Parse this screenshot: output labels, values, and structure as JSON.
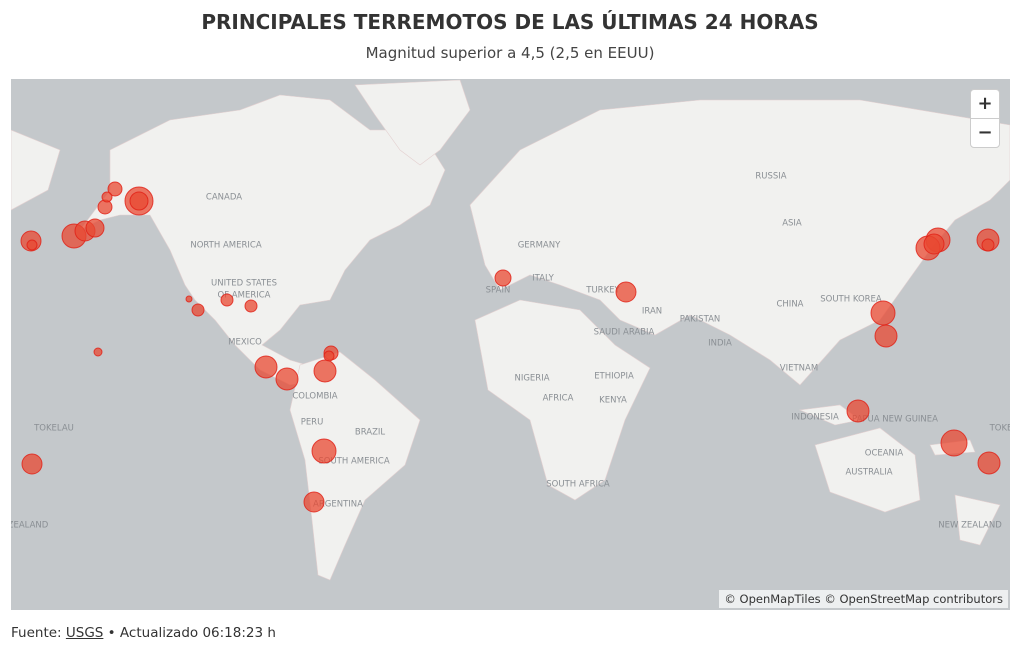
{
  "header": {
    "title": "PRINCIPALES TERREMOTOS DE LAS ÚLTIMAS 24 HORAS",
    "subtitle": "Magnitud superior a 4,5 (2,5 en EEUU)"
  },
  "map": {
    "labels": [
      "CANADA",
      "NORTH AMERICA",
      "UNITED STATES",
      "OF AMERICA",
      "MEXICO",
      "COLOMBIA",
      "PERU",
      "BRAZIL",
      "SOUTH AMERICA",
      "ARGENTINA",
      "TOKELAU",
      "ZEALAND",
      "RUSSIA",
      "ASIA",
      "GERMANY",
      "ITALY",
      "SPAIN",
      "TURKEY",
      "IRAN",
      "SAUDI ARABIA",
      "PAKISTAN",
      "INDIA",
      "CHINA",
      "SOUTH KOREA",
      "VIETNAM",
      "NIGERIA",
      "ETHIOPIA",
      "AFRICA",
      "KENYA",
      "SOUTH AFRICA",
      "INDONESIA",
      "PAPUA NEW GUINEA",
      "OCEANIA",
      "AUSTRALIA",
      "NEW ZEALAND",
      "TOKE"
    ],
    "zoom_in": "+",
    "zoom_out": "−",
    "attribution": "© OpenMapTiles © OpenStreetMap contributors"
  },
  "footer": {
    "source_label": "Fuente:",
    "source_link": "USGS",
    "updated": "• Actualizado 06:18:23 h"
  }
}
